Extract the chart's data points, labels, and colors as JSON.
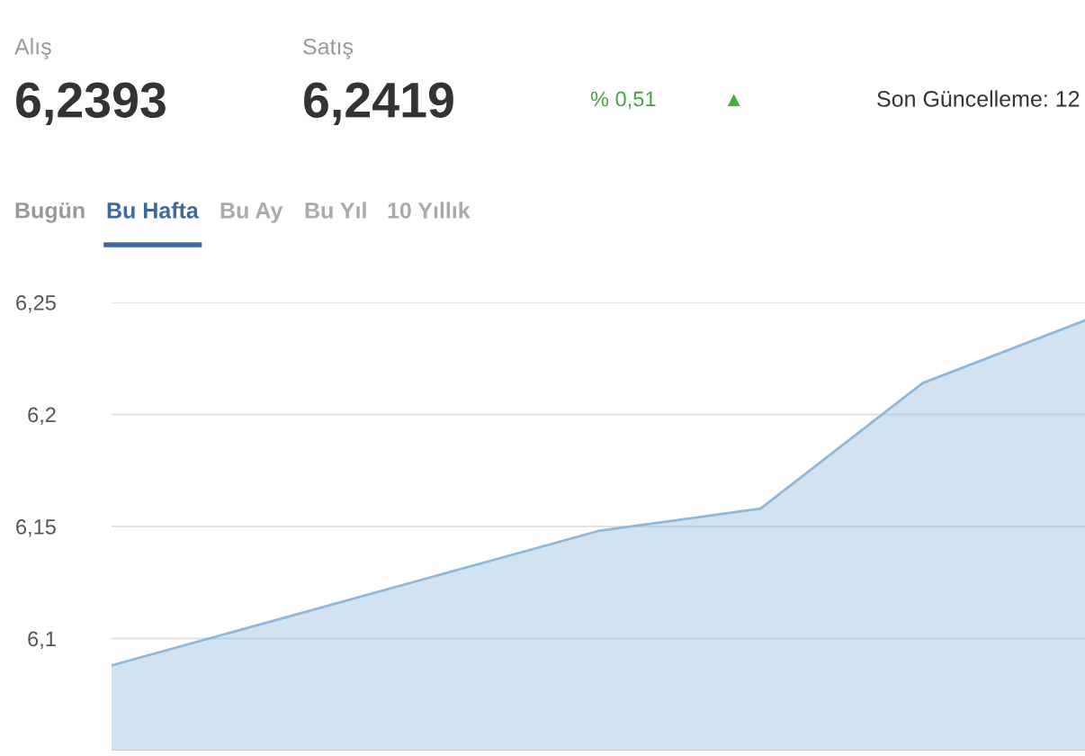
{
  "chart_data": {
    "type": "area",
    "categories": [
      null,
      null,
      null,
      null,
      null,
      null,
      null
    ],
    "series": [
      {
        "color": "#8bb8dc",
        "values": [
          6.088,
          6.108,
          6.128,
          6.148,
          6.158,
          6.214,
          6.242
        ]
      }
    ],
    "ylim": [
      6.05,
      6.25
    ],
    "yticks": [
      {
        "value": 6.05,
        "label": null
      },
      {
        "value": 6.1,
        "label": "6,1"
      },
      {
        "value": 6.15,
        "label": "6,15"
      },
      {
        "value": 6.2,
        "label": "6,2"
      },
      {
        "value": 6.25,
        "label": "6,25"
      }
    ],
    "grid": "y",
    "tick_labels": "y",
    "marker": "none",
    "line_style": "solid",
    "legend": false,
    "annotations": [
      "Alış",
      "6,2393",
      "Satış",
      "6,2419",
      "% 0,51",
      "▲",
      "Son Güncelleme: 12",
      "Bugün",
      "Bu Hafta",
      "Bu Ay",
      "Bu Yıl",
      "10 Yıllık"
    ]
  }
}
